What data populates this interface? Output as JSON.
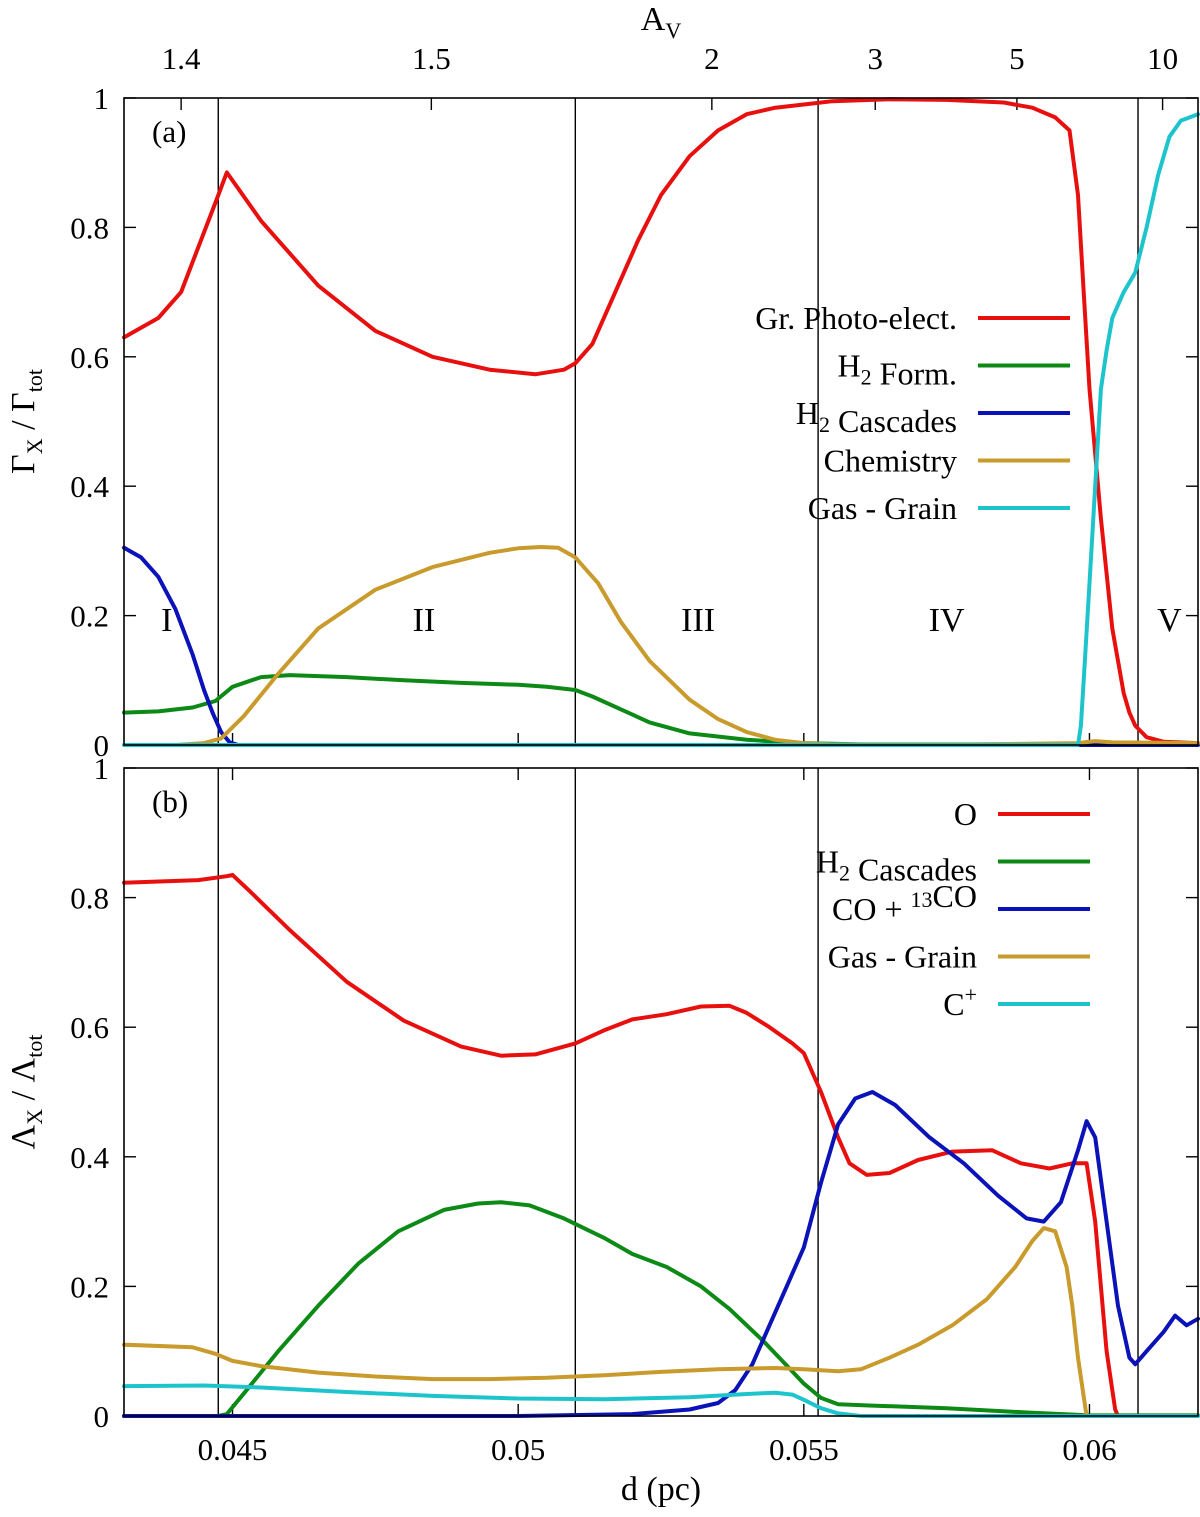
{
  "chart_data": [
    {
      "type": "line",
      "panel_label": "(a)",
      "ylabel": "Γ",
      "ylabel_sub_x": "X",
      "ylabel_sep": " / Γ",
      "ylabel_sub_tot": "tot",
      "ylim": [
        0,
        1
      ],
      "xlim": [
        0.0431,
        0.0619
      ],
      "yticks": [
        "0",
        "0.2",
        "0.4",
        "0.6",
        "0.8",
        "1"
      ],
      "top_axis": {
        "label": "A",
        "label_sub": "V",
        "ticks": [
          {
            "label": "1.4",
            "x": 0.0441
          },
          {
            "label": "1.5",
            "x": 0.04848
          },
          {
            "label": "2",
            "x": 0.05339
          },
          {
            "label": "3",
            "x": 0.05625
          },
          {
            "label": "5",
            "x": 0.05873
          },
          {
            "label": "10",
            "x": 0.06128
          }
        ]
      },
      "region_boundaries": [
        0.04475,
        0.051,
        0.05525,
        0.06085
      ],
      "regions": [
        {
          "label": "I",
          "x": 0.04385
        },
        {
          "label": "II",
          "x": 0.04835
        },
        {
          "label": "III",
          "x": 0.05315
        },
        {
          "label": "IV",
          "x": 0.0575
        },
        {
          "label": "V",
          "x": 0.0614
        }
      ],
      "region_label_y": 0.195,
      "legend_position": "right",
      "series": [
        {
          "name": "Gr. Photo-elect.",
          "name_parts": [
            {
              "t": "Gr. Photo-elect."
            }
          ],
          "color": "#e8100e",
          "x": [
            0.0431,
            0.0437,
            0.0441,
            0.04475,
            0.0449,
            0.0455,
            0.0465,
            0.0475,
            0.0485,
            0.0495,
            0.0503,
            0.0508,
            0.051,
            0.0513,
            0.0517,
            0.0521,
            0.0525,
            0.053,
            0.0535,
            0.054,
            0.0545,
            0.055,
            0.0555,
            0.0565,
            0.0575,
            0.0585,
            0.059,
            0.0594,
            0.05965,
            0.0598,
            0.0599,
            0.06,
            0.0602,
            0.0604,
            0.0606,
            0.0607,
            0.0608,
            0.061,
            0.0613,
            0.0619
          ],
          "y": [
            0.63,
            0.66,
            0.7,
            0.85,
            0.885,
            0.81,
            0.71,
            0.64,
            0.6,
            0.58,
            0.573,
            0.58,
            0.59,
            0.62,
            0.7,
            0.78,
            0.85,
            0.91,
            0.95,
            0.975,
            0.985,
            0.99,
            0.995,
            0.998,
            0.997,
            0.993,
            0.985,
            0.97,
            0.95,
            0.85,
            0.7,
            0.55,
            0.35,
            0.18,
            0.08,
            0.05,
            0.03,
            0.012,
            0.005,
            0.003
          ]
        },
        {
          "name": "H2 Form.",
          "name_parts": [
            {
              "t": "H"
            },
            {
              "t": "2",
              "sub": true
            },
            {
              "t": " Form."
            }
          ],
          "color": "#0c8a15",
          "x": [
            0.0431,
            0.0437,
            0.0443,
            0.0447,
            0.045,
            0.0455,
            0.046,
            0.047,
            0.048,
            0.049,
            0.05,
            0.0505,
            0.051,
            0.0513,
            0.0518,
            0.0523,
            0.053,
            0.054,
            0.055,
            0.056,
            0.058,
            0.06,
            0.0619
          ],
          "y": [
            0.05,
            0.052,
            0.058,
            0.068,
            0.09,
            0.105,
            0.108,
            0.105,
            0.1,
            0.096,
            0.093,
            0.09,
            0.085,
            0.075,
            0.055,
            0.035,
            0.018,
            0.008,
            0.003,
            0.001,
            0.001,
            0.001,
            0.001
          ]
        },
        {
          "name": "H2 Cascades",
          "name_parts": [
            {
              "t": "H"
            },
            {
              "t": "2",
              "sub": true
            },
            {
              "t": " Cascades"
            }
          ],
          "color": "#0a12b8",
          "x": [
            0.0431,
            0.0434,
            0.0437,
            0.044,
            0.0443,
            0.0445,
            0.04465,
            0.0448,
            0.04495,
            0.0451,
            0.0619
          ],
          "y": [
            0.305,
            0.29,
            0.26,
            0.21,
            0.14,
            0.085,
            0.05,
            0.02,
            0.004,
            0.0,
            0.0
          ]
        },
        {
          "name": "Chemistry",
          "name_parts": [
            {
              "t": "Chemistry"
            }
          ],
          "color": "#c99a2c",
          "x": [
            0.0431,
            0.044,
            0.0445,
            0.0448,
            0.0452,
            0.0458,
            0.0465,
            0.0475,
            0.0485,
            0.0495,
            0.05,
            0.0504,
            0.0507,
            0.051,
            0.0514,
            0.0518,
            0.0523,
            0.053,
            0.0535,
            0.054,
            0.0545,
            0.055,
            0.0555,
            0.058,
            0.0598,
            0.0601,
            0.0604,
            0.0619
          ],
          "y": [
            0.0,
            0.0,
            0.003,
            0.01,
            0.045,
            0.11,
            0.18,
            0.24,
            0.275,
            0.297,
            0.304,
            0.306,
            0.305,
            0.29,
            0.25,
            0.19,
            0.13,
            0.07,
            0.04,
            0.02,
            0.008,
            0.003,
            0.001,
            0.001,
            0.003,
            0.006,
            0.004,
            0.003
          ]
        },
        {
          "name": "Gas - Grain",
          "name_parts": [
            {
              "t": "Gas - Grain"
            }
          ],
          "color": "#1ec4cc",
          "x": [
            0.0431,
            0.0598,
            0.05985,
            0.0599,
            0.06,
            0.0601,
            0.0602,
            0.0603,
            0.0604,
            0.0606,
            0.0608,
            0.061,
            0.0612,
            0.0614,
            0.0616,
            0.0619
          ],
          "y": [
            0.0,
            0.0,
            0.03,
            0.1,
            0.25,
            0.4,
            0.55,
            0.61,
            0.66,
            0.7,
            0.73,
            0.8,
            0.88,
            0.94,
            0.965,
            0.975
          ]
        }
      ]
    },
    {
      "type": "line",
      "panel_label": "(b)",
      "ylabel": "Λ",
      "ylabel_sub_x": "X",
      "ylabel_sep": " / Λ",
      "ylabel_sub_tot": "tot",
      "ylim": [
        0,
        1
      ],
      "xlim": [
        0.0431,
        0.0619
      ],
      "yticks": [
        "0",
        "0.2",
        "0.4",
        "0.6",
        "0.8",
        "1"
      ],
      "xlabel": "d (pc)",
      "xticks": [
        {
          "label": "0.045",
          "x": 0.045
        },
        {
          "label": "0.05",
          "x": 0.05
        },
        {
          "label": "0.055",
          "x": 0.055
        },
        {
          "label": "0.06",
          "x": 0.06
        }
      ],
      "region_boundaries": [
        0.04475,
        0.051,
        0.05525,
        0.06085
      ],
      "legend_position": "top-right",
      "series": [
        {
          "name": "O",
          "name_parts": [
            {
              "t": "O"
            }
          ],
          "color": "#e8100e",
          "x": [
            0.0431,
            0.0444,
            0.0449,
            0.045,
            0.0453,
            0.046,
            0.047,
            0.048,
            0.049,
            0.0497,
            0.0503,
            0.051,
            0.0515,
            0.052,
            0.0526,
            0.0532,
            0.0537,
            0.054,
            0.0544,
            0.0548,
            0.055,
            0.0553,
            0.0556,
            0.0558,
            0.0561,
            0.0565,
            0.057,
            0.0576,
            0.0583,
            0.0588,
            0.0593,
            0.0597,
            0.05995,
            0.0601,
            0.0602,
            0.0603,
            0.0604,
            0.06045,
            0.0605
          ],
          "y": [
            0.823,
            0.827,
            0.833,
            0.835,
            0.81,
            0.75,
            0.67,
            0.61,
            0.57,
            0.556,
            0.558,
            0.575,
            0.595,
            0.612,
            0.62,
            0.632,
            0.633,
            0.622,
            0.6,
            0.575,
            0.56,
            0.5,
            0.43,
            0.39,
            0.372,
            0.375,
            0.395,
            0.408,
            0.41,
            0.39,
            0.382,
            0.39,
            0.39,
            0.3,
            0.2,
            0.1,
            0.04,
            0.01,
            0.0
          ]
        },
        {
          "name": "H2 Cascades",
          "name_parts": [
            {
              "t": "H"
            },
            {
              "t": "2",
              "sub": true
            },
            {
              "t": " Cascades"
            }
          ],
          "color": "#0c8a15",
          "x": [
            0.0431,
            0.04475,
            0.0449,
            0.0452,
            0.0458,
            0.0465,
            0.0472,
            0.0479,
            0.0487,
            0.0493,
            0.0497,
            0.0502,
            0.0508,
            0.0515,
            0.052,
            0.0526,
            0.0532,
            0.0537,
            0.0543,
            0.0547,
            0.055,
            0.0553,
            0.0556,
            0.0562,
            0.0575,
            0.059,
            0.06,
            0.0619
          ],
          "y": [
            0.0,
            0.0,
            0.003,
            0.035,
            0.1,
            0.17,
            0.235,
            0.285,
            0.318,
            0.328,
            0.33,
            0.325,
            0.305,
            0.275,
            0.25,
            0.23,
            0.2,
            0.165,
            0.115,
            0.078,
            0.05,
            0.028,
            0.018,
            0.016,
            0.012,
            0.005,
            0.001,
            0.001
          ]
        },
        {
          "name": "CO + 13CO",
          "name_parts": [
            {
              "t": "CO + "
            },
            {
              "t": "13",
              "sup": true
            },
            {
              "t": "CO"
            }
          ],
          "color": "#0a12b8",
          "x": [
            0.0431,
            0.05,
            0.052,
            0.053,
            0.0535,
            0.0538,
            0.0541,
            0.0544,
            0.0547,
            0.055,
            0.0553,
            0.0556,
            0.0559,
            0.0562,
            0.0566,
            0.0572,
            0.0578,
            0.0584,
            0.0589,
            0.0592,
            0.0595,
            0.0598,
            0.05995,
            0.0601,
            0.0603,
            0.0605,
            0.0607,
            0.0608,
            0.061,
            0.0613,
            0.0615,
            0.0617,
            0.0619
          ],
          "y": [
            0.0,
            0.0,
            0.003,
            0.01,
            0.02,
            0.04,
            0.08,
            0.14,
            0.2,
            0.26,
            0.36,
            0.45,
            0.49,
            0.5,
            0.48,
            0.43,
            0.39,
            0.34,
            0.305,
            0.3,
            0.33,
            0.41,
            0.455,
            0.43,
            0.3,
            0.17,
            0.09,
            0.08,
            0.1,
            0.13,
            0.155,
            0.14,
            0.15
          ]
        },
        {
          "name": "Gas - Grain",
          "name_parts": [
            {
              "t": "Gas - Grain"
            }
          ],
          "color": "#c99a2c",
          "x": [
            0.0431,
            0.0443,
            0.0447,
            0.045,
            0.0455,
            0.0465,
            0.0475,
            0.0485,
            0.0495,
            0.0505,
            0.0515,
            0.0525,
            0.0535,
            0.0545,
            0.055,
            0.0556,
            0.056,
            0.0565,
            0.057,
            0.0576,
            0.0582,
            0.0587,
            0.059,
            0.0592,
            0.0594,
            0.0596,
            0.0597,
            0.0598,
            0.0599,
            0.05995
          ],
          "y": [
            0.11,
            0.106,
            0.096,
            0.085,
            0.077,
            0.067,
            0.061,
            0.057,
            0.057,
            0.059,
            0.063,
            0.068,
            0.072,
            0.074,
            0.072,
            0.069,
            0.072,
            0.09,
            0.11,
            0.14,
            0.18,
            0.23,
            0.27,
            0.29,
            0.285,
            0.23,
            0.17,
            0.09,
            0.03,
            0.0
          ]
        },
        {
          "name": "C+",
          "name_parts": [
            {
              "t": "C"
            },
            {
              "t": "+",
              "sup": true
            }
          ],
          "color": "#1ec4cc",
          "x": [
            0.0431,
            0.0445,
            0.0455,
            0.047,
            0.0485,
            0.05,
            0.0515,
            0.053,
            0.054,
            0.0545,
            0.0548,
            0.055,
            0.0553,
            0.0556,
            0.056,
            0.0619
          ],
          "y": [
            0.046,
            0.047,
            0.044,
            0.037,
            0.031,
            0.027,
            0.026,
            0.029,
            0.034,
            0.036,
            0.033,
            0.025,
            0.012,
            0.004,
            0.0,
            0.0
          ]
        }
      ]
    }
  ]
}
